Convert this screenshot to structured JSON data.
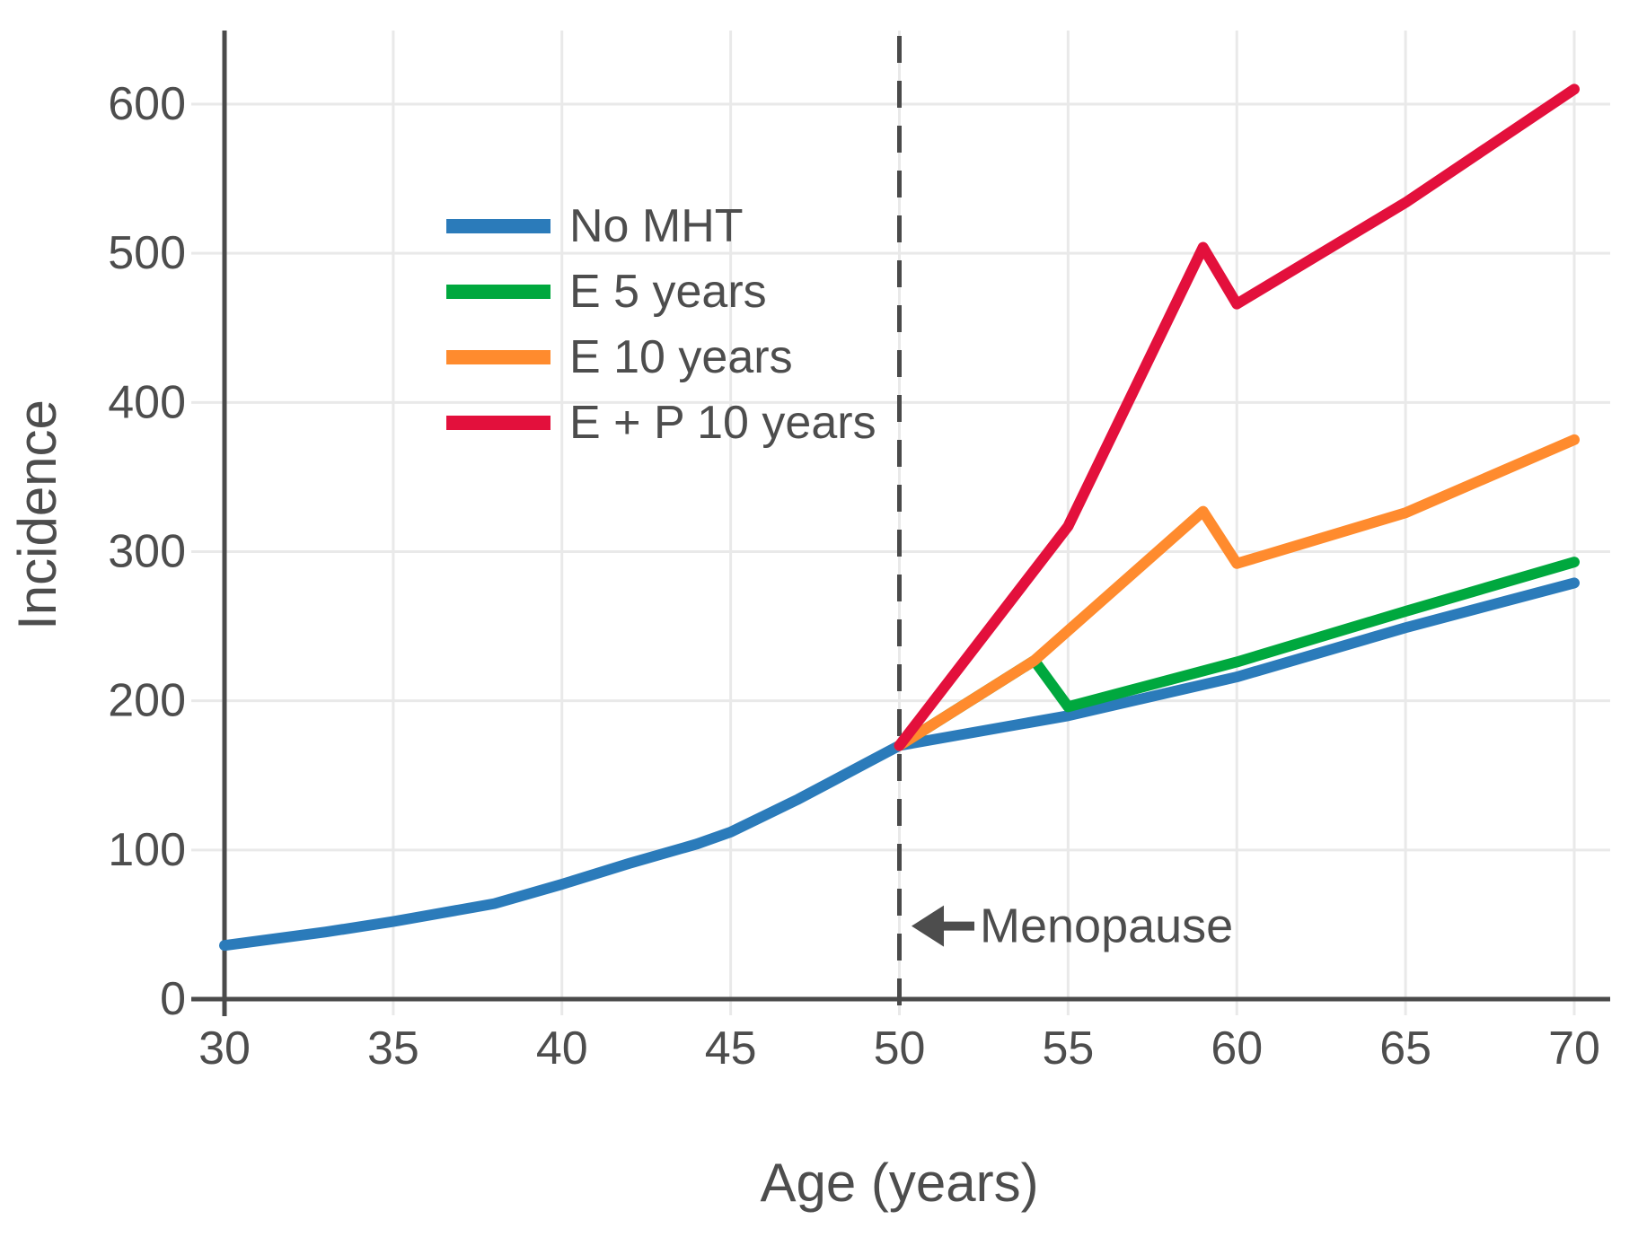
{
  "figure": {
    "background": "#ffffff",
    "text_color": "#4d4d4d",
    "axis_color": "#4a4a4a",
    "grid_color": "#e9e9e9"
  },
  "chart_data": {
    "type": "line",
    "title": "",
    "xlabel": "Age (years)",
    "ylabel": "Incidence",
    "xlim": [
      30,
      71
    ],
    "ylim": [
      0,
      650
    ],
    "x_ticks": [
      30,
      35,
      40,
      45,
      50,
      55,
      60,
      65,
      70
    ],
    "y_ticks": [
      0,
      100,
      200,
      300,
      400,
      500,
      600
    ],
    "grid": true,
    "legend_position": "upper-left-inside",
    "series": [
      {
        "name": "No MHT",
        "color": "#2b7bba",
        "points": [
          [
            30,
            36
          ],
          [
            33,
            45
          ],
          [
            35,
            52
          ],
          [
            38,
            64
          ],
          [
            40,
            77
          ],
          [
            42,
            91
          ],
          [
            44,
            104
          ],
          [
            45,
            112
          ],
          [
            46,
            123
          ],
          [
            47,
            134
          ],
          [
            48,
            146
          ],
          [
            49,
            158
          ],
          [
            50,
            170
          ],
          [
            55,
            190
          ],
          [
            60,
            216
          ],
          [
            65,
            249
          ],
          [
            70,
            279
          ]
        ]
      },
      {
        "name": "E 5 years",
        "color": "#00a83e",
        "points": [
          [
            50,
            170
          ],
          [
            54,
            227
          ],
          [
            55,
            196
          ],
          [
            60,
            226
          ],
          [
            65,
            260
          ],
          [
            70,
            293
          ]
        ]
      },
      {
        "name": "E 10 years",
        "color": "#ff8b2e",
        "points": [
          [
            50,
            170
          ],
          [
            54,
            227
          ],
          [
            59,
            327
          ],
          [
            60,
            292
          ],
          [
            65,
            326
          ],
          [
            70,
            375
          ]
        ]
      },
      {
        "name": "E + P 10 years",
        "color": "#e3103c",
        "points": [
          [
            50,
            170
          ],
          [
            55,
            317
          ],
          [
            59,
            504
          ],
          [
            60,
            466
          ],
          [
            65,
            534
          ],
          [
            70,
            610
          ]
        ]
      }
    ],
    "annotations": [
      {
        "type": "vline",
        "x": 50,
        "style": "dashed",
        "color": "#4a4a4a"
      },
      {
        "type": "arrow-label",
        "text": "Menopause",
        "x": 50.2,
        "y": 49,
        "color": "#4d4d4d"
      }
    ]
  },
  "legend": {
    "items": [
      {
        "label": "No MHT",
        "color": "#2b7bba"
      },
      {
        "label": "E 5 years",
        "color": "#00a83e"
      },
      {
        "label": "E 10 years",
        "color": "#ff8b2e"
      },
      {
        "label": "E + P 10 years",
        "color": "#e3103c"
      }
    ]
  }
}
